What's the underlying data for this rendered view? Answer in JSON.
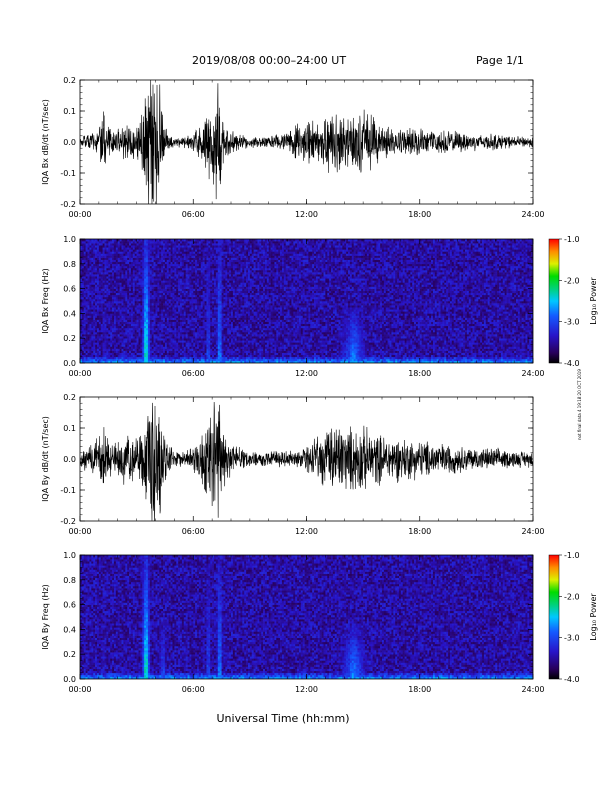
{
  "header": {
    "date_range": "2019/08/08  00:00–24:00 UT",
    "page": "Page 1/1"
  },
  "side_note": "not final data 4 19:18:20 OCT 2019",
  "chart_data": [
    {
      "type": "line",
      "ylabel": "IQA Bx dB/dt (nT/sec)",
      "xlim": [
        0,
        24
      ],
      "ylim": [
        -0.2,
        0.2
      ],
      "yticks": [
        "-0.2",
        "-0.1",
        "0.0",
        "0.1",
        "0.2"
      ],
      "xticks": [
        "00:00",
        "06:00",
        "12:00",
        "18:00",
        "24:00"
      ],
      "envelope": {
        "hours": [
          0,
          0.5,
          1,
          1.2,
          1.5,
          2,
          2.5,
          3,
          3.3,
          3.6,
          4,
          4.3,
          4.6,
          5,
          5.5,
          6,
          6.5,
          7,
          7.3,
          7.6,
          8,
          9,
          10,
          11,
          11.5,
          12,
          12.5,
          13,
          13.5,
          14,
          14.5,
          15,
          15.5,
          16,
          17,
          18,
          19,
          20,
          21,
          22,
          23,
          24
        ],
        "amplitude": [
          0.02,
          0.03,
          0.04,
          0.12,
          0.05,
          0.05,
          0.08,
          0.06,
          0.12,
          0.25,
          0.25,
          0.2,
          0.05,
          0.02,
          0.02,
          0.03,
          0.08,
          0.15,
          0.25,
          0.1,
          0.04,
          0.02,
          0.02,
          0.04,
          0.06,
          0.08,
          0.07,
          0.1,
          0.12,
          0.09,
          0.1,
          0.12,
          0.09,
          0.06,
          0.05,
          0.05,
          0.04,
          0.04,
          0.03,
          0.03,
          0.02,
          0.02
        ]
      }
    },
    {
      "type": "heatmap",
      "ylabel": "IQA Bx Freq (Hz)",
      "xlim": [
        0,
        24
      ],
      "ylim": [
        0,
        1
      ],
      "yticks": [
        "0.0",
        "0.2",
        "0.4",
        "0.6",
        "0.8",
        "1.0"
      ],
      "xticks": [
        "00:00",
        "06:00",
        "12:00",
        "18:00",
        "24:00"
      ],
      "colorbar": {
        "label": "Log₁₀ Power",
        "ticks": [
          "-1.0",
          "-2.0",
          "-3.0",
          "-4.0"
        ],
        "range": [
          -4,
          -1
        ]
      },
      "features": [
        {
          "hour": 1.3,
          "width": 0.15,
          "freq_top": 0.8,
          "log_power": -2.8
        },
        {
          "hour": 2.0,
          "width": 0.12,
          "freq_top": 0.6,
          "log_power": -2.8
        },
        {
          "hour": 2.6,
          "width": 0.12,
          "freq_top": 0.6,
          "log_power": -2.8
        },
        {
          "hour": 3.5,
          "width": 0.6,
          "freq_top": 1.0,
          "log_power": -2.2
        },
        {
          "hour": 6.8,
          "width": 0.3,
          "freq_top": 0.9,
          "log_power": -2.8
        },
        {
          "hour": 7.4,
          "width": 0.4,
          "freq_top": 1.0,
          "log_power": -2.6
        },
        {
          "hour": 14.5,
          "width": 2.0,
          "freq_top": 0.45,
          "log_power": -2.8
        }
      ]
    },
    {
      "type": "line",
      "ylabel": "IQA By dB/dt (nT/sec)",
      "xlim": [
        0,
        24
      ],
      "ylim": [
        -0.2,
        0.2
      ],
      "yticks": [
        "-0.2",
        "-0.1",
        "0.0",
        "0.1",
        "0.2"
      ],
      "xticks": [
        "00:00",
        "06:00",
        "12:00",
        "18:00",
        "24:00"
      ],
      "envelope": {
        "hours": [
          0,
          0.5,
          1,
          1.2,
          1.5,
          2,
          2.5,
          3,
          3.3,
          3.6,
          4,
          4.3,
          4.6,
          5,
          5.5,
          6,
          6.5,
          7,
          7.3,
          7.6,
          8,
          9,
          10,
          11,
          11.5,
          12,
          12.5,
          13,
          13.5,
          14,
          14.5,
          15,
          15.5,
          16,
          17,
          18,
          19,
          20,
          21,
          22,
          23,
          24
        ],
        "amplitude": [
          0.03,
          0.05,
          0.08,
          0.12,
          0.08,
          0.06,
          0.1,
          0.08,
          0.14,
          0.25,
          0.25,
          0.22,
          0.06,
          0.03,
          0.03,
          0.04,
          0.1,
          0.2,
          0.25,
          0.12,
          0.05,
          0.03,
          0.03,
          0.03,
          0.03,
          0.05,
          0.08,
          0.1,
          0.14,
          0.12,
          0.12,
          0.12,
          0.1,
          0.09,
          0.08,
          0.07,
          0.06,
          0.05,
          0.04,
          0.04,
          0.03,
          0.03
        ]
      }
    },
    {
      "type": "heatmap",
      "ylabel": "IQA By Freq (Hz)",
      "xlim": [
        0,
        24
      ],
      "ylim": [
        0,
        1
      ],
      "yticks": [
        "0.0",
        "0.2",
        "0.4",
        "0.6",
        "0.8",
        "1.0"
      ],
      "xticks": [
        "00:00",
        "06:00",
        "12:00",
        "18:00",
        "24:00"
      ],
      "colorbar": {
        "label": "Log₁₀ Power",
        "ticks": [
          "-1.0",
          "-2.0",
          "-3.0",
          "-4.0"
        ],
        "range": [
          -4,
          -1
        ]
      },
      "features": [
        {
          "hour": 1.3,
          "width": 0.15,
          "freq_top": 0.8,
          "log_power": -2.8
        },
        {
          "hour": 2.0,
          "width": 0.12,
          "freq_top": 0.6,
          "log_power": -2.8
        },
        {
          "hour": 2.6,
          "width": 0.12,
          "freq_top": 0.6,
          "log_power": -2.8
        },
        {
          "hour": 3.5,
          "width": 0.6,
          "freq_top": 1.0,
          "log_power": -2.2
        },
        {
          "hour": 4.4,
          "width": 0.6,
          "freq_top": 0.5,
          "log_power": -3.0
        },
        {
          "hour": 6.8,
          "width": 0.3,
          "freq_top": 0.9,
          "log_power": -2.8
        },
        {
          "hour": 7.4,
          "width": 0.4,
          "freq_top": 1.0,
          "log_power": -2.6
        },
        {
          "hour": 14.5,
          "width": 2.0,
          "freq_top": 0.45,
          "log_power": -2.8
        }
      ]
    }
  ],
  "xlabel": "Universal Time (hh:mm)"
}
